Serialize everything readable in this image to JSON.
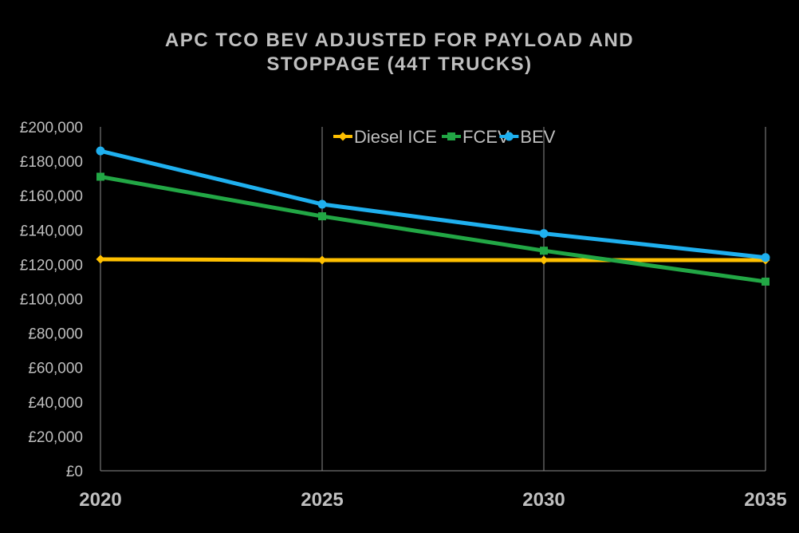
{
  "chart_data": {
    "type": "line",
    "title_lines": [
      "APC TCO BEV ADJUSTED FOR PAYLOAD AND",
      "STOPPAGE (44T TRUCKS)"
    ],
    "x": [
      "2020",
      "2025",
      "2030",
      "2035"
    ],
    "ylim": [
      0,
      200000
    ],
    "yticks": [
      0,
      20000,
      40000,
      60000,
      80000,
      100000,
      120000,
      140000,
      160000,
      180000,
      200000
    ],
    "ytick_labels": [
      "£0",
      "£20,000",
      "£40,000",
      "£60,000",
      "£80,000",
      "£100,000",
      "£120,000",
      "£140,000",
      "£160,000",
      "£180,000",
      "£200,000"
    ],
    "grid": "vertical",
    "legend_position": "top-center",
    "series": [
      {
        "name": "Diesel ICE",
        "color": "#ffc000",
        "marker": "diamond",
        "values": [
          123000,
          122500,
          122500,
          122500
        ]
      },
      {
        "name": "FCEV",
        "color": "#22a745",
        "marker": "square",
        "values": [
          171000,
          148000,
          128000,
          110000
        ]
      },
      {
        "name": "BEV",
        "color": "#1fb0ef",
        "marker": "circle",
        "values": [
          186000,
          155000,
          138000,
          124000
        ]
      }
    ]
  }
}
